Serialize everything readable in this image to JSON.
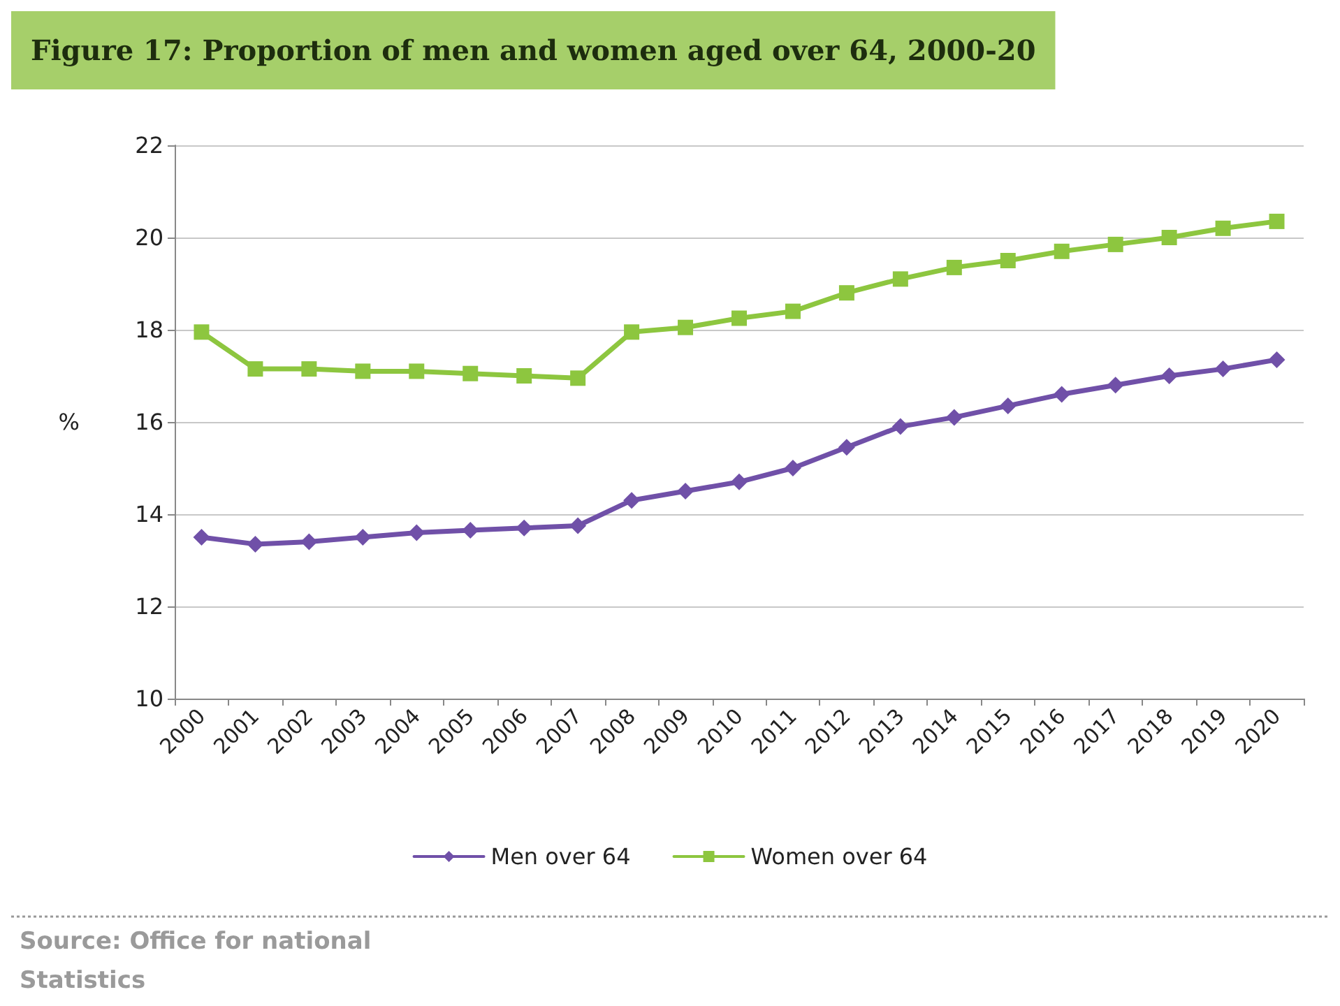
{
  "chart_data": {
    "type": "line",
    "title": "Figure 17: Proportion of men and women aged over 64, 2000-20",
    "ylabel": "%",
    "categories": [
      "2000",
      "2001",
      "2002",
      "2003",
      "2004",
      "2005",
      "2006",
      "2007",
      "2008",
      "2009",
      "2010",
      "2011",
      "2012",
      "2013",
      "2014",
      "2015",
      "2016",
      "2017",
      "2018",
      "2019",
      "2020"
    ],
    "series": [
      {
        "name": "Men over 64",
        "color": "#7050a8",
        "marker": "diamond",
        "values": [
          13.5,
          13.35,
          13.4,
          13.5,
          13.6,
          13.65,
          13.7,
          13.75,
          14.3,
          14.5,
          14.7,
          15.0,
          15.45,
          15.9,
          16.1,
          16.35,
          16.6,
          16.8,
          17.0,
          17.15,
          17.35
        ]
      },
      {
        "name": "Women over 64",
        "color": "#8dc63f",
        "marker": "square",
        "values": [
          17.95,
          17.15,
          17.15,
          17.1,
          17.1,
          17.05,
          17.0,
          16.95,
          17.95,
          18.05,
          18.25,
          18.4,
          18.8,
          19.1,
          19.35,
          19.5,
          19.7,
          19.85,
          20.0,
          20.2,
          20.35
        ]
      }
    ],
    "ylim": [
      10,
      22
    ],
    "yticks": [
      10,
      12,
      14,
      16,
      18,
      20,
      22
    ],
    "grid": "y",
    "legend": "bottom",
    "line_style": "solid",
    "annotations": [
      "Source: Office for national Statistics"
    ]
  }
}
